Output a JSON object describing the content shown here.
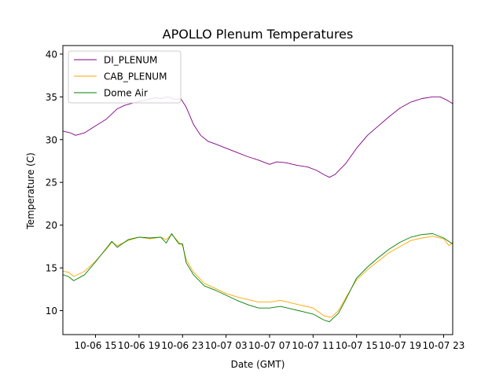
{
  "chart_data": {
    "type": "line",
    "title": "APOLLO Plenum Temperatures",
    "xlabel": "Date (GMT)",
    "ylabel": "Temperature (C)",
    "ylim": [
      7.2,
      41.0
    ],
    "xlim": [
      "10-06 12:00",
      "10-07 23:50"
    ],
    "yticks": [
      10,
      15,
      20,
      25,
      30,
      35,
      40
    ],
    "xticks": [
      {
        "label": "10-06 15",
        "x": "10-06 15:00"
      },
      {
        "label": "10-06 19",
        "x": "10-06 19:00"
      },
      {
        "label": "10-06 23",
        "x": "10-06 23:00"
      },
      {
        "label": "10-07 03",
        "x": "10-07 03:00"
      },
      {
        "label": "10-07 07",
        "x": "10-07 07:00"
      },
      {
        "label": "10-07 11",
        "x": "10-07 11:00"
      },
      {
        "label": "10-07 15",
        "x": "10-07 15:00"
      },
      {
        "label": "10-07 19",
        "x": "10-07 19:00"
      },
      {
        "label": "10-07 23",
        "x": "10-07 23:00"
      }
    ],
    "grid": false,
    "legend_position": "top-left",
    "series": [
      {
        "name": "DI_PLENUM",
        "color": "#800080",
        "points": [
          [
            "10-06 12:00",
            31.0
          ],
          [
            "10-06 12:40",
            30.8
          ],
          [
            "10-06 13:10",
            30.5
          ],
          [
            "10-06 14:00",
            30.8
          ],
          [
            "10-06 15:00",
            31.6
          ],
          [
            "10-06 16:00",
            32.4
          ],
          [
            "10-06 17:00",
            33.6
          ],
          [
            "10-06 17:40",
            34.0
          ],
          [
            "10-06 18:30",
            34.3
          ],
          [
            "10-06 19:30",
            34.6
          ],
          [
            "10-06 20:30",
            34.9
          ],
          [
            "10-06 21:00",
            34.8
          ],
          [
            "10-06 21:40",
            35.0
          ],
          [
            "10-06 22:20",
            34.7
          ],
          [
            "10-06 22:50",
            34.8
          ],
          [
            "10-06 23:20",
            33.8
          ],
          [
            "10-07 00:00",
            31.8
          ],
          [
            "10-07 00:40",
            30.5
          ],
          [
            "10-07 01:20",
            29.8
          ],
          [
            "10-07 02:00",
            29.5
          ],
          [
            "10-07 03:00",
            29.0
          ],
          [
            "10-07 04:00",
            28.5
          ],
          [
            "10-07 05:00",
            28.0
          ],
          [
            "10-07 06:00",
            27.6
          ],
          [
            "10-07 07:00",
            27.1
          ],
          [
            "10-07 07:40",
            27.4
          ],
          [
            "10-07 08:30",
            27.3
          ],
          [
            "10-07 09:30",
            27.0
          ],
          [
            "10-07 10:30",
            26.8
          ],
          [
            "10-07 11:20",
            26.4
          ],
          [
            "10-07 12:00",
            25.9
          ],
          [
            "10-07 12:30",
            25.6
          ],
          [
            "10-07 13:00",
            25.9
          ],
          [
            "10-07 14:00",
            27.2
          ],
          [
            "10-07 15:00",
            29.0
          ],
          [
            "10-07 16:00",
            30.5
          ],
          [
            "10-07 17:00",
            31.6
          ],
          [
            "10-07 18:00",
            32.7
          ],
          [
            "10-07 19:00",
            33.7
          ],
          [
            "10-07 20:00",
            34.4
          ],
          [
            "10-07 21:00",
            34.8
          ],
          [
            "10-07 22:00",
            35.0
          ],
          [
            "10-07 22:40",
            35.0
          ],
          [
            "10-07 23:20",
            34.6
          ],
          [
            "10-07 23:50",
            34.2
          ]
        ]
      },
      {
        "name": "CAB_PLENUM",
        "color": "#ffa500",
        "points": [
          [
            "10-06 12:00",
            14.6
          ],
          [
            "10-06 12:30",
            14.5
          ],
          [
            "10-06 13:00",
            14.0
          ],
          [
            "10-06 14:00",
            14.6
          ],
          [
            "10-06 15:00",
            15.8
          ],
          [
            "10-06 16:00",
            17.2
          ],
          [
            "10-06 16:30",
            18.0
          ],
          [
            "10-06 17:00",
            17.6
          ],
          [
            "10-06 18:00",
            18.2
          ],
          [
            "10-06 19:00",
            18.6
          ],
          [
            "10-06 20:00",
            18.4
          ],
          [
            "10-06 21:00",
            18.6
          ],
          [
            "10-06 21:30",
            18.3
          ],
          [
            "10-06 22:00",
            18.9
          ],
          [
            "10-06 22:40",
            18.0
          ],
          [
            "10-06 23:00",
            17.6
          ],
          [
            "10-06 23:20",
            16.0
          ],
          [
            "10-07 00:00",
            14.5
          ],
          [
            "10-07 01:00",
            13.2
          ],
          [
            "10-07 02:00",
            12.6
          ],
          [
            "10-07 03:00",
            12.0
          ],
          [
            "10-07 04:00",
            11.6
          ],
          [
            "10-07 05:00",
            11.3
          ],
          [
            "10-07 06:00",
            11.0
          ],
          [
            "10-07 07:00",
            11.0
          ],
          [
            "10-07 08:00",
            11.2
          ],
          [
            "10-07 09:00",
            10.9
          ],
          [
            "10-07 10:00",
            10.6
          ],
          [
            "10-07 11:00",
            10.3
          ],
          [
            "10-07 12:00",
            9.4
          ],
          [
            "10-07 12:40",
            9.2
          ],
          [
            "10-07 13:20",
            10.0
          ],
          [
            "10-07 14:00",
            11.5
          ],
          [
            "10-07 15:00",
            13.6
          ],
          [
            "10-07 16:00",
            14.8
          ],
          [
            "10-07 17:00",
            15.8
          ],
          [
            "10-07 18:00",
            16.8
          ],
          [
            "10-07 19:00",
            17.5
          ],
          [
            "10-07 20:00",
            18.2
          ],
          [
            "10-07 21:00",
            18.5
          ],
          [
            "10-07 22:00",
            18.7
          ],
          [
            "10-07 23:00",
            18.4
          ],
          [
            "10-07 23:30",
            17.6
          ],
          [
            "10-07 23:50",
            18.0
          ]
        ]
      },
      {
        "name": "Dome Air",
        "color": "#008000",
        "points": [
          [
            "10-06 12:00",
            14.2
          ],
          [
            "10-06 12:30",
            14.0
          ],
          [
            "10-06 13:00",
            13.5
          ],
          [
            "10-06 14:00",
            14.2
          ],
          [
            "10-06 15:00",
            15.7
          ],
          [
            "10-06 16:00",
            17.3
          ],
          [
            "10-06 16:30",
            18.1
          ],
          [
            "10-06 17:00",
            17.4
          ],
          [
            "10-06 18:00",
            18.3
          ],
          [
            "10-06 19:00",
            18.6
          ],
          [
            "10-06 20:00",
            18.5
          ],
          [
            "10-06 21:00",
            18.6
          ],
          [
            "10-06 21:30",
            17.9
          ],
          [
            "10-06 22:00",
            19.0
          ],
          [
            "10-06 22:40",
            17.8
          ],
          [
            "10-06 23:00",
            17.8
          ],
          [
            "10-06 23:20",
            15.6
          ],
          [
            "10-07 00:00",
            14.2
          ],
          [
            "10-07 01:00",
            12.9
          ],
          [
            "10-07 02:00",
            12.4
          ],
          [
            "10-07 03:00",
            11.8
          ],
          [
            "10-07 04:00",
            11.2
          ],
          [
            "10-07 05:00",
            10.7
          ],
          [
            "10-07 06:00",
            10.3
          ],
          [
            "10-07 07:00",
            10.3
          ],
          [
            "10-07 08:00",
            10.5
          ],
          [
            "10-07 09:00",
            10.2
          ],
          [
            "10-07 10:00",
            9.9
          ],
          [
            "10-07 11:00",
            9.6
          ],
          [
            "10-07 12:00",
            8.9
          ],
          [
            "10-07 12:30",
            8.7
          ],
          [
            "10-07 13:20",
            9.7
          ],
          [
            "10-07 14:00",
            11.3
          ],
          [
            "10-07 15:00",
            13.8
          ],
          [
            "10-07 16:00",
            15.1
          ],
          [
            "10-07 17:00",
            16.2
          ],
          [
            "10-07 18:00",
            17.2
          ],
          [
            "10-07 19:00",
            18.0
          ],
          [
            "10-07 20:00",
            18.6
          ],
          [
            "10-07 21:00",
            18.9
          ],
          [
            "10-07 22:00",
            19.0
          ],
          [
            "10-07 23:00",
            18.5
          ],
          [
            "10-07 23:50",
            17.8
          ]
        ]
      }
    ]
  }
}
